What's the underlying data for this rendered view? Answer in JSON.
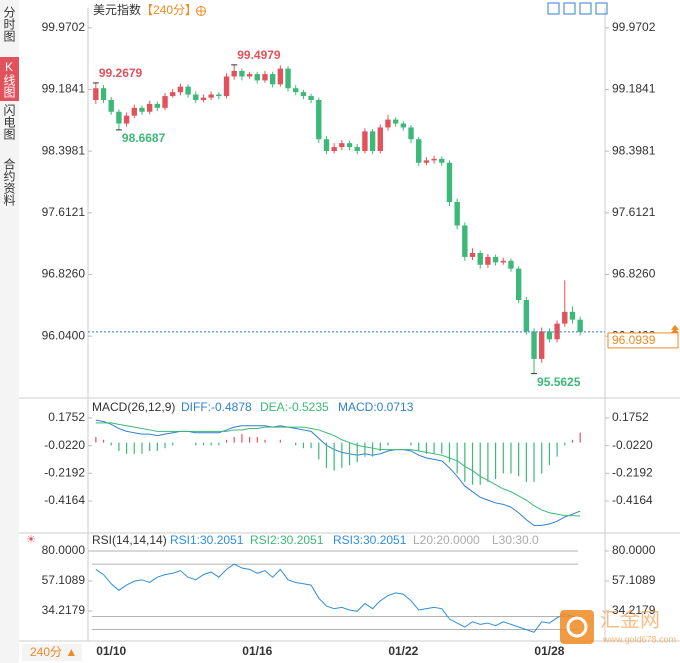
{
  "sidebar": [
    "分时图",
    "K线图",
    "闪电图",
    "合约资料"
  ],
  "period_button": "240分 ▲",
  "watermark": {
    "name": "汇金网",
    "url": "www.gold678.com"
  },
  "chart_data": [
    {
      "type": "candlestick",
      "title": "美元指数",
      "subtitle": "【240分】",
      "up_color": "#e2525c",
      "down_color": "#3cb878",
      "categories": [
        null,
        null,
        "01/10",
        null,
        null,
        null,
        null,
        null,
        null,
        null,
        null,
        null,
        null,
        null,
        null,
        null,
        null,
        null,
        null,
        null,
        null,
        "01/16",
        null,
        null,
        null,
        null,
        null,
        null,
        null,
        null,
        null,
        null,
        null,
        null,
        null,
        null,
        null,
        null,
        null,
        null,
        "01/22",
        null,
        null,
        null,
        null,
        null,
        null,
        null,
        null,
        null,
        null,
        null,
        null,
        null,
        null,
        null,
        null,
        null,
        null,
        "01/28",
        null,
        null,
        null,
        null
      ],
      "open": [
        99.05,
        99.2,
        99.05,
        98.9,
        98.75,
        98.85,
        98.95,
        98.9,
        99.0,
        98.95,
        99.1,
        99.15,
        99.22,
        99.12,
        99.05,
        99.08,
        99.12,
        99.1,
        99.35,
        99.42,
        99.35,
        99.38,
        99.3,
        99.38,
        99.25,
        99.45,
        99.2,
        99.15,
        99.1,
        99.05,
        98.55,
        98.4,
        98.45,
        98.5,
        98.45,
        98.4,
        98.65,
        98.4,
        98.7,
        98.8,
        98.75,
        98.7,
        98.55,
        98.25,
        98.28,
        98.3,
        98.25,
        97.75,
        97.45,
        97.05,
        97.1,
        96.95,
        97.05,
        96.98,
        97.0,
        96.9,
        96.5,
        96.1,
        95.75,
        96.1,
        96.0,
        96.2,
        96.35,
        96.25
      ],
      "high": [
        99.2679,
        99.24,
        99.09,
        98.93,
        98.89,
        98.99,
        98.98,
        99.04,
        99.03,
        99.14,
        99.19,
        99.26,
        99.25,
        99.16,
        99.12,
        99.16,
        99.15,
        99.39,
        99.4979,
        99.45,
        99.41,
        99.41,
        99.42,
        99.41,
        99.49,
        99.48,
        99.24,
        99.18,
        99.13,
        99.08,
        98.59,
        98.5,
        98.54,
        98.53,
        98.49,
        98.69,
        98.68,
        98.74,
        98.86,
        98.83,
        98.78,
        98.73,
        98.58,
        98.32,
        98.34,
        98.33,
        98.28,
        97.79,
        97.49,
        97.16,
        97.13,
        97.09,
        97.08,
        97.04,
        97.03,
        96.93,
        96.54,
        96.14,
        96.15,
        96.14,
        96.24,
        96.75,
        96.42,
        96.29
      ],
      "low": [
        99.0,
        99.01,
        98.86,
        98.6687,
        98.71,
        98.82,
        98.86,
        98.87,
        98.91,
        98.92,
        99.08,
        99.11,
        99.08,
        99.01,
        99.02,
        99.05,
        99.06,
        99.07,
        99.31,
        99.3,
        99.32,
        99.26,
        99.27,
        99.21,
        99.22,
        99.16,
        99.11,
        99.06,
        99.01,
        98.5,
        98.36,
        98.37,
        98.41,
        98.41,
        98.36,
        98.37,
        98.36,
        98.37,
        98.66,
        98.71,
        98.66,
        98.5,
        98.21,
        98.22,
        98.24,
        98.21,
        97.7,
        97.4,
        97.0,
        97.01,
        96.9,
        96.91,
        96.94,
        96.95,
        96.86,
        96.46,
        96.06,
        95.5625,
        95.7,
        95.96,
        95.96,
        96.16,
        96.2,
        96.05
      ],
      "close": [
        99.2,
        99.05,
        98.9,
        98.75,
        98.85,
        98.95,
        98.9,
        99.0,
        98.95,
        99.1,
        99.15,
        99.22,
        99.12,
        99.05,
        99.08,
        99.12,
        99.1,
        99.35,
        99.42,
        99.35,
        99.38,
        99.3,
        99.38,
        99.25,
        99.45,
        99.2,
        99.15,
        99.1,
        99.05,
        98.55,
        98.4,
        98.45,
        98.5,
        98.45,
        98.4,
        98.65,
        98.4,
        98.7,
        98.8,
        98.75,
        98.7,
        98.55,
        98.25,
        98.28,
        98.3,
        98.25,
        97.75,
        97.45,
        97.05,
        97.1,
        96.95,
        97.05,
        96.98,
        97.0,
        96.9,
        96.5,
        96.1,
        95.75,
        96.1,
        96.0,
        96.2,
        96.35,
        96.25,
        96.0939
      ],
      "annotations": [
        99.2679,
        98.6687,
        99.4979,
        95.5625
      ],
      "last_price": 96.0939,
      "last_price_color": "#f08a24",
      "ylim": [
        95.29,
        100.095
      ],
      "yticks": [
        99.9702,
        99.1841,
        98.3981,
        97.6121,
        {
          "value": 96.826,
          "label": "96.8260"
        },
        {
          "value": 96.04,
          "label": "96.0400"
        }
      ]
    },
    {
      "type": "macd",
      "title": "MACD(26,12,9)",
      "series": [
        {
          "name": "DIFF:-0.4878",
          "kind": "line",
          "color": "#2f7fd3",
          "values": [
            0.16,
            0.15,
            0.13,
            0.1,
            0.08,
            0.07,
            0.06,
            0.06,
            0.05,
            0.06,
            0.07,
            0.08,
            0.08,
            0.07,
            0.07,
            0.07,
            0.07,
            0.09,
            0.11,
            0.12,
            0.12,
            0.12,
            0.12,
            0.11,
            0.12,
            0.11,
            0.1,
            0.09,
            0.08,
            0.03,
            -0.02,
            -0.05,
            -0.07,
            -0.08,
            -0.09,
            -0.08,
            -0.09,
            -0.08,
            -0.06,
            -0.05,
            -0.05,
            -0.06,
            -0.09,
            -0.11,
            -0.12,
            -0.13,
            -0.18,
            -0.24,
            -0.31,
            -0.35,
            -0.39,
            -0.41,
            -0.43,
            -0.44,
            -0.46,
            -0.5,
            -0.55,
            -0.59,
            -0.59,
            -0.58,
            -0.56,
            -0.53,
            -0.51,
            -0.4878
          ]
        },
        {
          "name": "DEA:-0.5235",
          "kind": "line",
          "color": "#3cb878",
          "values": [
            0.14,
            0.14,
            0.14,
            0.13,
            0.12,
            0.11,
            0.1,
            0.09,
            0.08,
            0.08,
            0.08,
            0.08,
            0.08,
            0.08,
            0.08,
            0.08,
            0.08,
            0.08,
            0.09,
            0.09,
            0.1,
            0.1,
            0.11,
            0.11,
            0.11,
            0.11,
            0.11,
            0.11,
            0.1,
            0.09,
            0.07,
            0.05,
            0.02,
            0.0,
            -0.02,
            -0.03,
            -0.04,
            -0.05,
            -0.05,
            -0.05,
            -0.05,
            -0.05,
            -0.06,
            -0.07,
            -0.08,
            -0.09,
            -0.11,
            -0.13,
            -0.17,
            -0.2,
            -0.24,
            -0.27,
            -0.3,
            -0.33,
            -0.35,
            -0.38,
            -0.41,
            -0.45,
            -0.48,
            -0.5,
            -0.51,
            -0.52,
            -0.52,
            -0.5235
          ]
        },
        {
          "name": "MACD:0.0713",
          "kind": "bar",
          "color": "#2f7fd3",
          "up_color": "#e2525c",
          "down_color": "#3cb878",
          "values": [
            0.04,
            0.02,
            -0.02,
            -0.06,
            -0.08,
            -0.08,
            -0.08,
            -0.06,
            -0.06,
            -0.04,
            -0.02,
            0,
            0,
            -0.02,
            -0.02,
            -0.02,
            -0.02,
            0.02,
            0.04,
            0.06,
            0.04,
            0.04,
            0.02,
            0,
            0.02,
            0,
            -0.02,
            -0.04,
            -0.04,
            -0.12,
            -0.18,
            -0.2,
            -0.18,
            -0.16,
            -0.14,
            -0.1,
            -0.1,
            -0.06,
            -0.02,
            0,
            0,
            -0.02,
            -0.06,
            -0.08,
            -0.08,
            -0.08,
            -0.14,
            -0.22,
            -0.28,
            -0.3,
            -0.3,
            -0.28,
            -0.26,
            -0.22,
            -0.22,
            -0.24,
            -0.28,
            -0.28,
            -0.22,
            -0.16,
            -0.1,
            -0.02,
            0.02,
            0.0713
          ]
        }
      ],
      "ylim": [
        -0.6228,
        0.3033
      ],
      "yticks": [
        0.1752,
        {
          "value": -0.022,
          "label": "-0.0220"
        },
        -0.2192,
        -0.4164
      ]
    },
    {
      "type": "rsi",
      "title": "RSI(14,14,14)",
      "series": [
        {
          "name": "RSI1:30.2051",
          "color": "#2f8fd8",
          "values": [
            66,
            62,
            55,
            50,
            54,
            57,
            58,
            56,
            60,
            62,
            63,
            65,
            60,
            58,
            62,
            64,
            60,
            66,
            70,
            67,
            66,
            63,
            65,
            60,
            66,
            58,
            56,
            55,
            54,
            44,
            38,
            36,
            37,
            35,
            34,
            40,
            36,
            42,
            46,
            48,
            47,
            42,
            35,
            36,
            37,
            36,
            28,
            25,
            22,
            26,
            24,
            25,
            23,
            26,
            24,
            22,
            20,
            18,
            26,
            25,
            29,
            32,
            30,
            30.2051
          ]
        }
      ],
      "legend": [
        {
          "name": "RSI2:30.2051",
          "color": "#3cb878"
        },
        {
          "name": "RSI3:30.2051",
          "color": "#2f8fd8"
        },
        {
          "name": "L20:20.0000",
          "color": "#aaaaaa"
        },
        {
          "name": "L30:30.0",
          "color": "#aaaaaa"
        }
      ],
      "levels": [
        80,
        70,
        30,
        20
      ],
      "ylim": [
        12.09,
        92.21
      ],
      "yticks": [
        {
          "value": 80,
          "label": "80.0000"
        },
        57.1089,
        34.2179
      ]
    }
  ]
}
